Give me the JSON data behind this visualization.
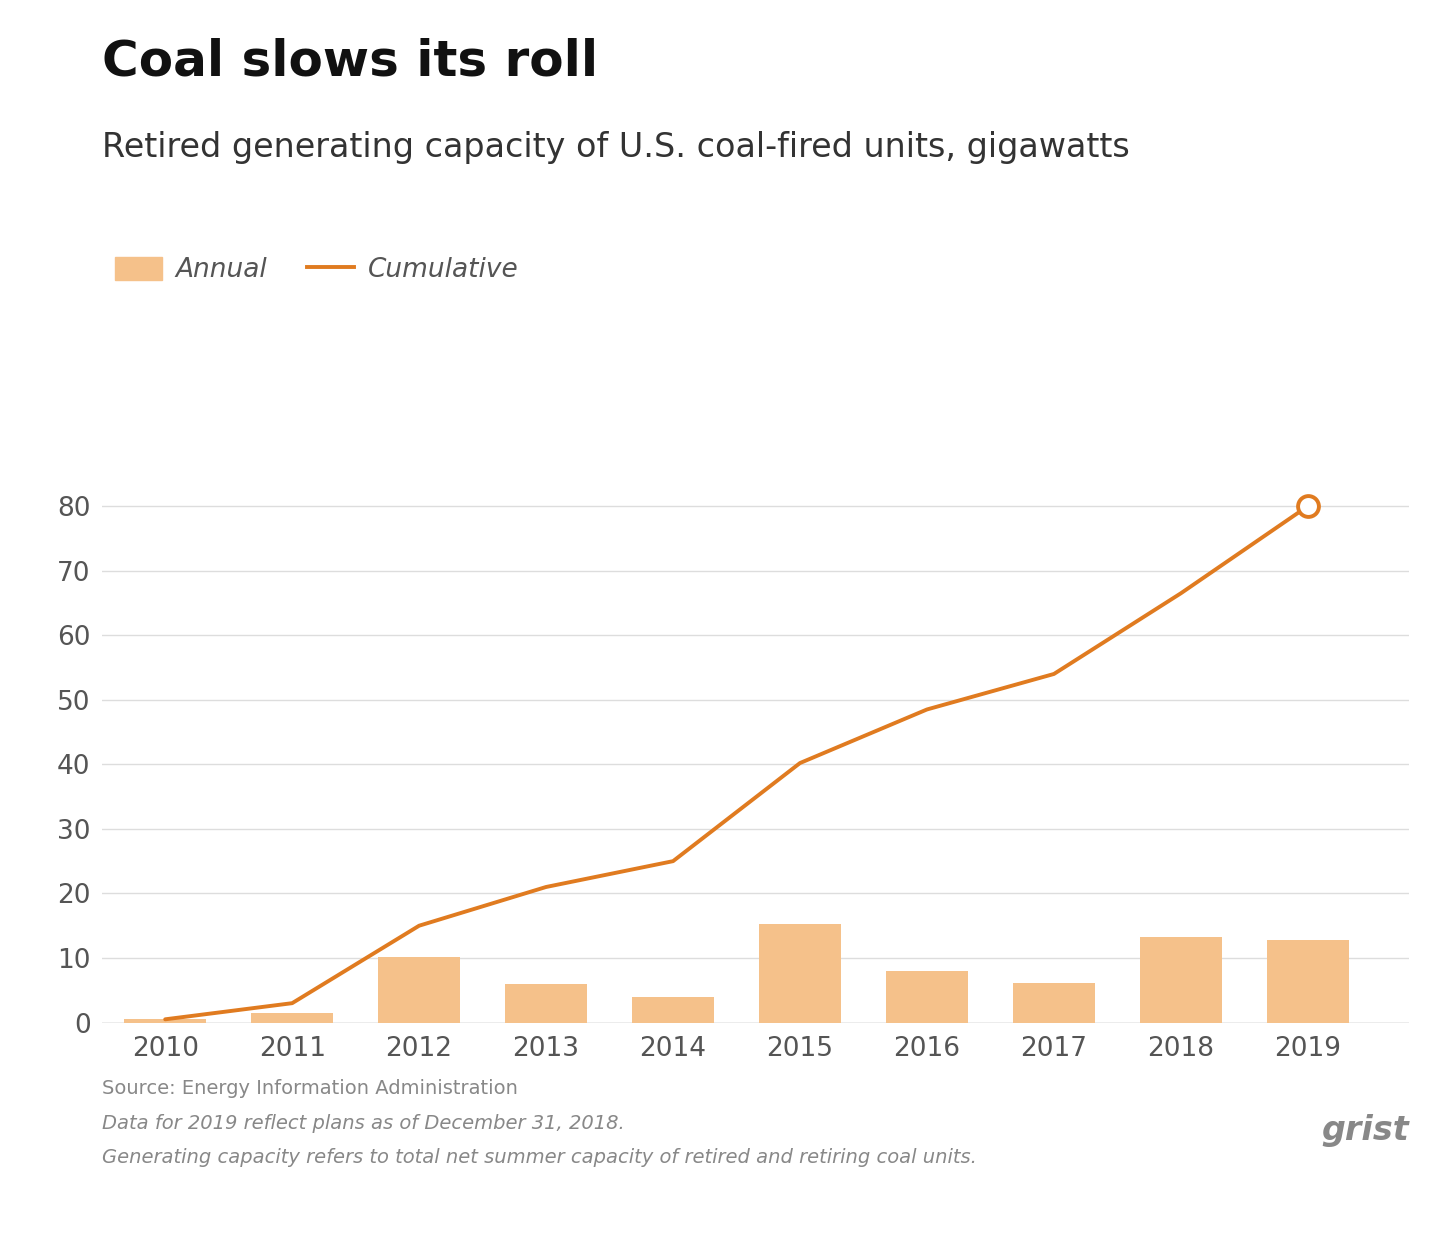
{
  "years": [
    2010,
    2011,
    2012,
    2013,
    2014,
    2015,
    2016,
    2017,
    2018,
    2019
  ],
  "annual": [
    0.5,
    1.5,
    10.2,
    6.0,
    4.0,
    15.2,
    8.0,
    6.2,
    13.2,
    12.8
  ],
  "cumulative": [
    0.5,
    3.0,
    15.0,
    21.0,
    25.0,
    40.2,
    48.5,
    54.0,
    66.5,
    80.0
  ],
  "bar_color": "#f5c18a",
  "line_color": "#e07b20",
  "open_circle_year": 2019,
  "open_circle_value": 80.0,
  "title": "Coal slows its roll",
  "subtitle": "Retired generating capacity of U.S. coal-fired units, gigawatts",
  "legend_annual": "Annual",
  "legend_cumulative": "Cumulative",
  "ylim": [
    0,
    85
  ],
  "yticks": [
    0,
    10,
    20,
    30,
    40,
    50,
    60,
    70,
    80
  ],
  "source_line1": "Source: Energy Information Administration",
  "source_line2": "Data for 2019 reflect plans as of December 31, 2018.",
  "source_line3": "Generating capacity refers to total net summer capacity of retired and retiring coal units.",
  "background_color": "#ffffff",
  "grid_color": "#dddddd",
  "title_fontsize": 36,
  "subtitle_fontsize": 24,
  "tick_fontsize": 19,
  "legend_fontsize": 19,
  "source_fontsize": 14,
  "bar_width": 0.65
}
